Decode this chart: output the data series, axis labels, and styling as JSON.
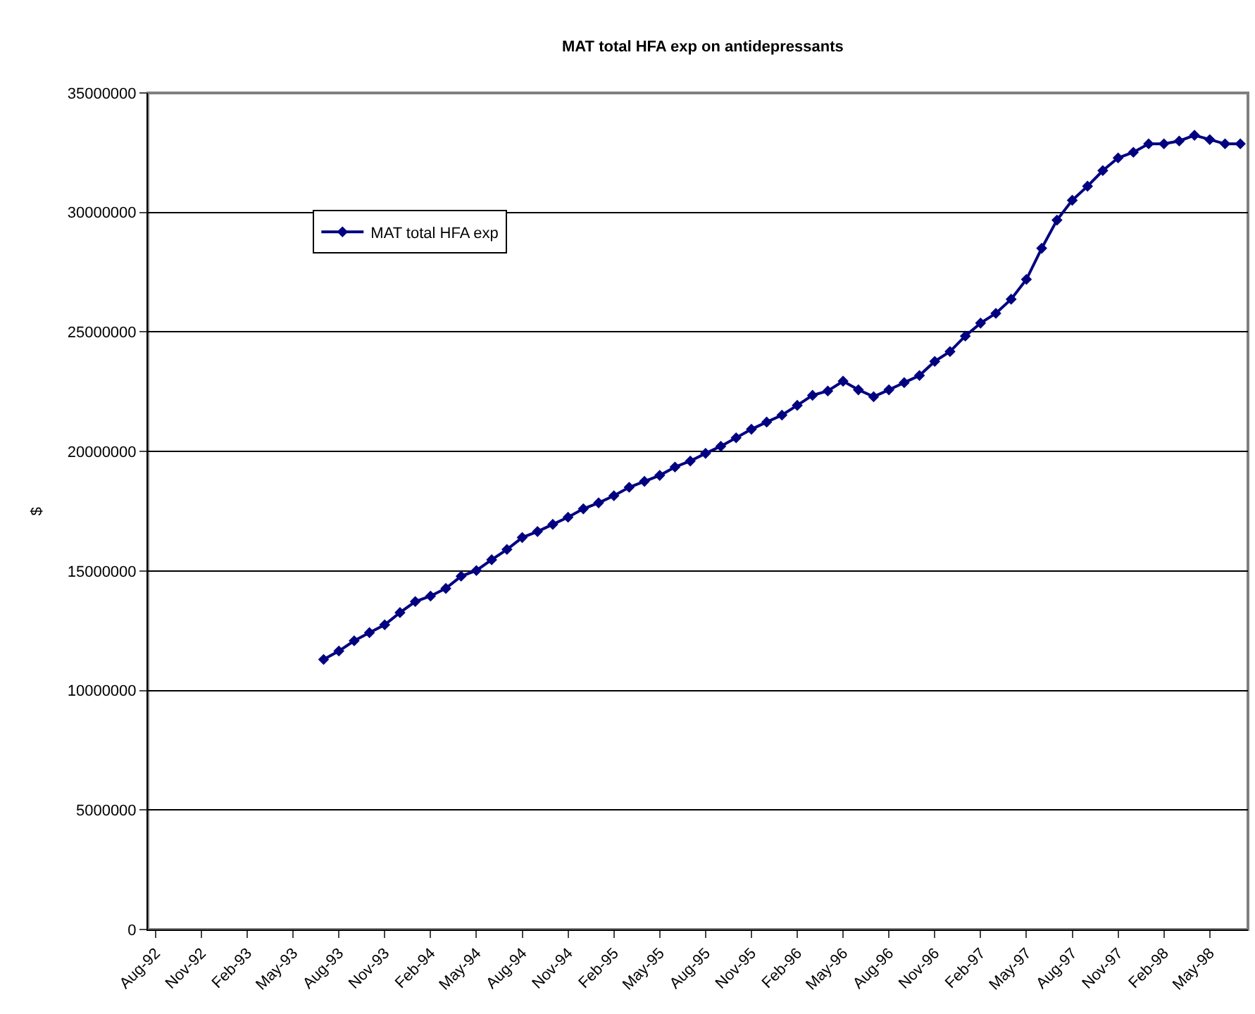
{
  "chart_data": {
    "type": "line",
    "title": "MAT total HFA exp on antidepressants",
    "ylabel": "$",
    "categories": [
      "Aug-92",
      null,
      null,
      "Nov-92",
      null,
      null,
      "Feb-93",
      null,
      null,
      "May-93",
      null,
      null,
      "Aug-93",
      null,
      null,
      "Nov-93",
      null,
      null,
      "Feb-94",
      null,
      null,
      "May-94",
      null,
      null,
      "Aug-94",
      null,
      null,
      "Nov-94",
      null,
      null,
      "Feb-95",
      null,
      null,
      "May-95",
      null,
      null,
      "Aug-95",
      null,
      null,
      "Nov-95",
      null,
      null,
      "Feb-96",
      null,
      null,
      "May-96",
      null,
      null,
      "Aug-96",
      null,
      null,
      "Nov-96",
      null,
      null,
      "Feb-97",
      null,
      null,
      "May-97",
      null,
      null,
      "Aug-97",
      null,
      null,
      "Nov-97",
      null,
      null,
      "Feb-98",
      null,
      null,
      "May-98",
      null,
      null
    ],
    "series": [
      {
        "name": "MAT total HFA exp",
        "color": "#000080",
        "values": [
          null,
          null,
          null,
          null,
          null,
          null,
          null,
          null,
          null,
          null,
          null,
          11300000,
          11650000,
          12080000,
          12420000,
          12750000,
          13260000,
          13720000,
          13950000,
          14270000,
          14780000,
          15020000,
          15470000,
          15900000,
          16400000,
          16650000,
          16950000,
          17250000,
          17600000,
          17850000,
          18150000,
          18500000,
          18750000,
          19000000,
          19350000,
          19600000,
          19920000,
          20220000,
          20570000,
          20930000,
          21230000,
          21520000,
          21930000,
          22350000,
          22530000,
          22940000,
          22580000,
          22290000,
          22580000,
          22880000,
          23180000,
          23770000,
          24180000,
          24830000,
          25370000,
          25780000,
          26370000,
          27200000,
          28500000,
          29680000,
          30510000,
          31100000,
          31750000,
          32280000,
          32520000,
          32870000,
          32870000,
          32990000,
          33230000,
          33050000,
          32870000,
          32870000
        ]
      }
    ],
    "ylim": [
      0,
      35000000
    ],
    "yticks": [
      0,
      5000000,
      10000000,
      15000000,
      20000000,
      25000000,
      30000000,
      35000000
    ],
    "grid": "y",
    "legend": "top left",
    "marker": "diamond",
    "line_style": "solid"
  }
}
